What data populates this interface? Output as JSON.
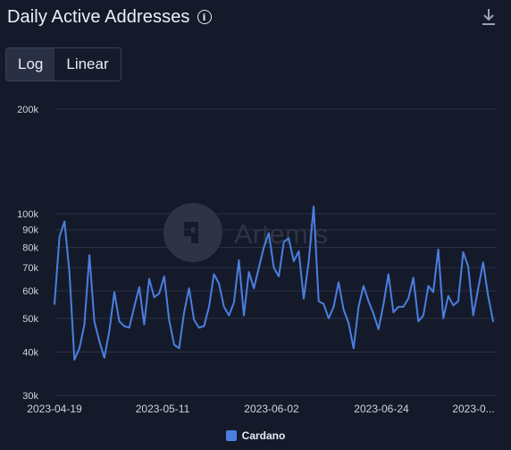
{
  "header": {
    "title": "Daily Active Addresses",
    "info_icon": "info-icon",
    "download_icon": "download-icon"
  },
  "scale_toggle": {
    "options": [
      "Log",
      "Linear"
    ],
    "active": "Log"
  },
  "watermark": "Artemis",
  "colors": {
    "line": "#4a7fe0",
    "background": "#151a2b",
    "grid": "#2a3045"
  },
  "chart_data": {
    "type": "line",
    "title": "Daily Active Addresses",
    "xlabel": "",
    "ylabel": "",
    "y_scale": "log",
    "ylim": [
      30000,
      200000
    ],
    "y_ticks": [
      {
        "value": 200000,
        "label": "200k"
      },
      {
        "value": 100000,
        "label": "100k"
      },
      {
        "value": 90000,
        "label": "90k"
      },
      {
        "value": 80000,
        "label": "80k"
      },
      {
        "value": 70000,
        "label": "70k"
      },
      {
        "value": 60000,
        "label": "60k"
      },
      {
        "value": 50000,
        "label": "50k"
      },
      {
        "value": 40000,
        "label": "40k"
      },
      {
        "value": 30000,
        "label": "30k"
      }
    ],
    "x_ticks": [
      "2023-04-19",
      "2023-05-11",
      "2023-06-02",
      "2023-06-24",
      "2023-0..."
    ],
    "x_start": "2023-04-19",
    "grid": true,
    "legend_position": "bottom-center",
    "series": [
      {
        "name": "Cardano",
        "color": "#4a7fe0",
        "values": [
          55000,
          86000,
          95000,
          68000,
          38000,
          41000,
          48000,
          76000,
          49000,
          43000,
          38500,
          46000,
          59500,
          49000,
          47500,
          47000,
          54000,
          61500,
          48000,
          65000,
          57500,
          59000,
          66000,
          49500,
          42000,
          41000,
          52000,
          61000,
          49500,
          47000,
          47500,
          54000,
          67000,
          63000,
          54000,
          51000,
          55500,
          73500,
          51000,
          68000,
          61000,
          70000,
          80000,
          88000,
          70000,
          66000,
          83000,
          85000,
          73000,
          78000,
          57000,
          73000,
          105000,
          56000,
          55000,
          50000,
          54000,
          63500,
          53000,
          48500,
          41000,
          54000,
          62000,
          56000,
          51500,
          46500,
          55000,
          67000,
          52000,
          54000,
          54000,
          57000,
          65500,
          49000,
          51000,
          62000,
          59500,
          79000,
          50000,
          58000,
          54500,
          56000,
          77500,
          70500,
          51000,
          61000,
          72500,
          58000,
          49000
        ]
      }
    ]
  }
}
